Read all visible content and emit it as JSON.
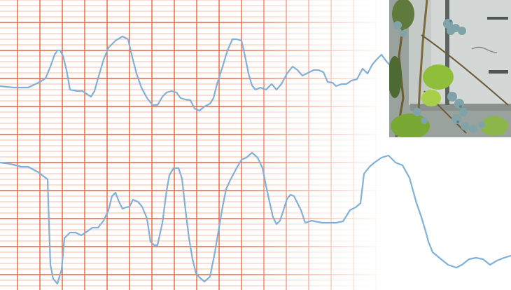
{
  "colors": {
    "grid_major": "#e8623f",
    "grid_minor": "#f1a48e",
    "trace": "#7fb1d9",
    "background": "#ffffff",
    "photo_wall": "#b9bfbd",
    "photo_berry": "#7fa3a8",
    "photo_leaf": "#8fbf3a"
  },
  "grid": {
    "fade": true
  },
  "traces": [
    {
      "name": "upper-trace",
      "x": [
        0,
        20,
        40,
        55,
        65,
        72,
        78,
        82,
        86,
        90,
        95,
        100,
        110,
        118,
        125,
        130,
        135,
        140,
        148,
        155,
        165,
        175,
        183,
        188,
        195,
        202,
        210,
        218,
        225,
        232,
        238,
        245,
        252,
        258,
        265,
        272,
        278,
        285,
        292,
        300,
        305,
        310,
        318,
        325,
        332,
        338,
        345,
        350,
        355,
        360,
        365,
        372,
        380,
        388,
        395,
        402,
        410,
        418,
        425,
        432,
        440,
        448,
        455,
        462,
        468,
        475,
        480,
        488,
        495,
        502,
        510,
        518,
        525,
        532,
        538,
        545,
        550,
        556
      ],
      "y": [
        123,
        125,
        125,
        118,
        112,
        95,
        78,
        72,
        72,
        80,
        100,
        128,
        130,
        130,
        135,
        138,
        130,
        112,
        85,
        68,
        58,
        52,
        56,
        78,
        105,
        125,
        140,
        150,
        150,
        138,
        132,
        130,
        132,
        140,
        142,
        143,
        155,
        158,
        152,
        148,
        140,
        120,
        95,
        72,
        56,
        56,
        58,
        80,
        105,
        122,
        128,
        125,
        128,
        120,
        128,
        120,
        105,
        95,
        100,
        108,
        104,
        100,
        100,
        103,
        117,
        118,
        123,
        120,
        120,
        115,
        113,
        98,
        105,
        92,
        85,
        78,
        85,
        92
      ]
    },
    {
      "name": "lower-trace",
      "x": [
        0,
        15,
        30,
        40,
        55,
        60,
        68,
        70,
        72,
        76,
        82,
        88,
        92,
        100,
        108,
        116,
        125,
        132,
        140,
        148,
        155,
        160,
        165,
        170,
        175,
        180,
        185,
        190,
        197,
        203,
        210,
        215,
        220,
        225,
        232,
        238,
        242,
        248,
        255,
        260,
        265,
        270,
        275,
        280,
        285,
        292,
        300,
        307,
        312,
        318,
        323,
        330,
        338,
        345,
        352,
        360,
        368,
        375,
        380,
        385,
        390,
        395,
        400,
        405,
        410,
        415,
        420,
        425,
        430,
        436,
        440,
        445,
        450,
        460,
        470,
        480,
        490,
        500,
        508,
        515,
        520,
        528,
        535,
        545,
        555,
        565,
        575,
        585,
        595,
        602,
        608,
        612,
        618,
        624,
        630,
        640,
        652,
        660,
        670,
        680,
        690,
        700,
        710,
        720,
        730
      ],
      "y": [
        232,
        234,
        238,
        238,
        246,
        250,
        256,
        320,
        378,
        398,
        405,
        385,
        340,
        332,
        332,
        336,
        330,
        325,
        325,
        315,
        300,
        280,
        275,
        288,
        298,
        296,
        295,
        285,
        288,
        295,
        312,
        345,
        350,
        350,
        318,
        272,
        250,
        240,
        240,
        255,
        300,
        340,
        370,
        390,
        396,
        402,
        395,
        360,
        330,
        295,
        270,
        255,
        240,
        228,
        225,
        218,
        225,
        240,
        265,
        288,
        310,
        320,
        315,
        300,
        284,
        278,
        280,
        290,
        300,
        318,
        317,
        315,
        316,
        318,
        318,
        318,
        316,
        300,
        296,
        290,
        248,
        238,
        232,
        225,
        222,
        232,
        236,
        254,
        290,
        310,
        330,
        345,
        360,
        365,
        370,
        378,
        382,
        378,
        370,
        368,
        370,
        378,
        372,
        368,
        365
      ]
    }
  ],
  "photo": {
    "subject": "blueberry-bush-photo"
  }
}
